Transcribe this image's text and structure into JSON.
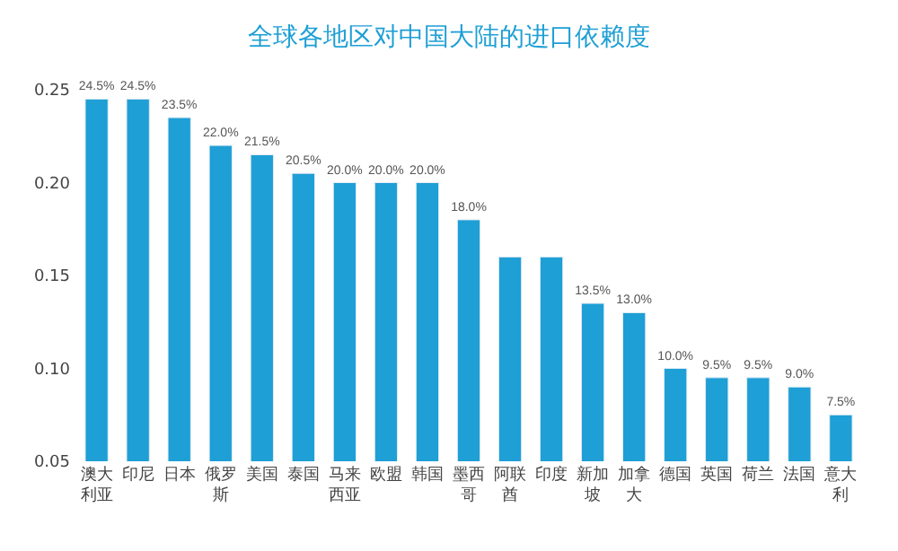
{
  "chart_data": {
    "type": "bar",
    "title": "全球各地区对中国大陆的进口依赖度",
    "categories": [
      "澳大利亚",
      "印尼",
      "日本",
      "俄罗斯",
      "美国",
      "泰国",
      "马来西亚",
      "欧盟",
      "韩国",
      "墨西哥",
      "阿联酋",
      "印度",
      "新加坡",
      "加拿大",
      "德国",
      "英国",
      "荷兰",
      "法国",
      "意大利"
    ],
    "values": [
      0.245,
      0.245,
      0.235,
      0.22,
      0.215,
      0.205,
      0.2,
      0.2,
      0.2,
      0.18,
      0.16,
      0.16,
      0.135,
      0.13,
      0.1,
      0.095,
      0.095,
      0.09,
      0.075
    ],
    "value_labels": [
      "24.5%",
      "24.5%",
      "23.5%",
      "22.0%",
      "21.5%",
      "20.5%",
      "20.0%",
      "20.0%",
      "20.0%",
      "18.0%",
      null,
      null,
      "13.5%",
      "13.0%",
      "10.0%",
      "9.5%",
      "9.5%",
      "9.0%",
      "7.5%"
    ],
    "color": "#1e9fd5",
    "ylim": [
      0.05,
      0.25
    ],
    "yticks": [
      {
        "value": 0.05,
        "label": "0.05"
      },
      {
        "value": 0.1,
        "label": "0.10"
      },
      {
        "value": 0.15,
        "label": "0.15"
      },
      {
        "value": 0.2,
        "label": "0.20"
      },
      {
        "value": 0.25,
        "label": "0.25"
      }
    ],
    "legend": false
  }
}
